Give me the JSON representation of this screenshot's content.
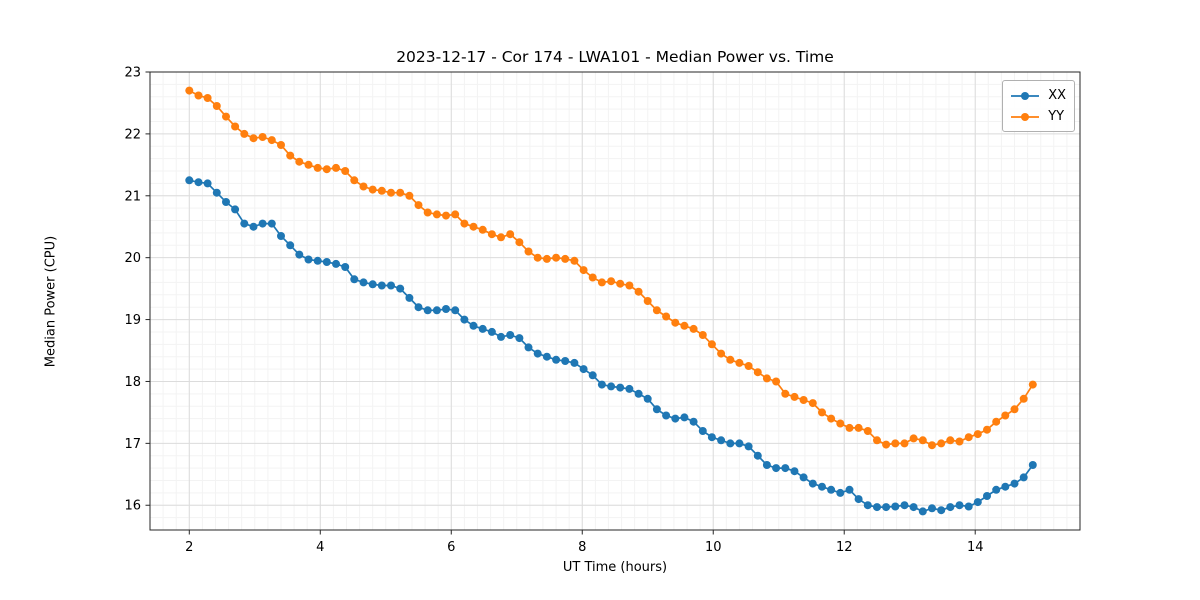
{
  "figure": {
    "background": "#ffffff"
  },
  "chart_data": {
    "type": "line",
    "title": "2023-12-17 - Cor 174 - LWA101 - Median Power vs. Time",
    "xlabel": "UT Time (hours)",
    "ylabel": "Median Power (CPU)",
    "xlim": [
      1.4,
      15.6
    ],
    "ylim": [
      15.6,
      23
    ],
    "xticks": [
      2,
      4,
      6,
      8,
      10,
      12,
      14
    ],
    "yticks": [
      16,
      17,
      18,
      19,
      20,
      21,
      22,
      23
    ],
    "grid": true,
    "legend_position": "upper right",
    "marker": "circle",
    "x": [
      2.0,
      2.14,
      2.28,
      2.42,
      2.56,
      2.7,
      2.84,
      2.98,
      3.12,
      3.26,
      3.4,
      3.54,
      3.68,
      3.82,
      3.96,
      4.1,
      4.24,
      4.38,
      4.52,
      4.66,
      4.8,
      4.94,
      5.08,
      5.22,
      5.36,
      5.5,
      5.64,
      5.78,
      5.92,
      6.06,
      6.2,
      6.34,
      6.48,
      6.62,
      6.76,
      6.9,
      7.04,
      7.18,
      7.32,
      7.46,
      7.6,
      7.74,
      7.88,
      8.02,
      8.16,
      8.3,
      8.44,
      8.58,
      8.72,
      8.86,
      9.0,
      9.14,
      9.28,
      9.42,
      9.56,
      9.7,
      9.84,
      9.98,
      10.12,
      10.26,
      10.4,
      10.54,
      10.68,
      10.82,
      10.96,
      11.1,
      11.24,
      11.38,
      11.52,
      11.66,
      11.8,
      11.94,
      12.08,
      12.22,
      12.36,
      12.5,
      12.64,
      12.78,
      12.92,
      13.06,
      13.2,
      13.34,
      13.48,
      13.62,
      13.76,
      13.9,
      14.04,
      14.18,
      14.32,
      14.46,
      14.6,
      14.74,
      14.88
    ],
    "series": [
      {
        "name": "XX",
        "color": "#1f77b4",
        "values": [
          21.25,
          21.22,
          21.2,
          21.05,
          20.9,
          20.78,
          20.55,
          20.5,
          20.55,
          20.55,
          20.35,
          20.2,
          20.05,
          19.97,
          19.95,
          19.93,
          19.9,
          19.85,
          19.65,
          19.6,
          19.57,
          19.55,
          19.55,
          19.5,
          19.35,
          19.2,
          19.15,
          19.15,
          19.17,
          19.15,
          19.0,
          18.9,
          18.85,
          18.8,
          18.72,
          18.75,
          18.7,
          18.55,
          18.45,
          18.4,
          18.35,
          18.33,
          18.3,
          18.2,
          18.1,
          17.95,
          17.92,
          17.9,
          17.88,
          17.8,
          17.72,
          17.55,
          17.45,
          17.4,
          17.42,
          17.35,
          17.2,
          17.1,
          17.05,
          17.0,
          17.0,
          16.95,
          16.8,
          16.65,
          16.6,
          16.6,
          16.55,
          16.45,
          16.35,
          16.3,
          16.25,
          16.2,
          16.25,
          16.1,
          16.0,
          15.97,
          15.97,
          15.98,
          16.0,
          15.97,
          15.9,
          15.95,
          15.92,
          15.97,
          16.0,
          15.98,
          16.05,
          16.15,
          16.25,
          16.3,
          16.35,
          16.45,
          16.65
        ]
      },
      {
        "name": "YY",
        "color": "#ff7f0e",
        "values": [
          22.7,
          22.62,
          22.58,
          22.45,
          22.28,
          22.12,
          22.0,
          21.93,
          21.95,
          21.9,
          21.82,
          21.65,
          21.55,
          21.5,
          21.45,
          21.43,
          21.45,
          21.4,
          21.25,
          21.15,
          21.1,
          21.08,
          21.05,
          21.05,
          21.0,
          20.85,
          20.73,
          20.7,
          20.68,
          20.7,
          20.55,
          20.5,
          20.45,
          20.38,
          20.33,
          20.38,
          20.25,
          20.1,
          20.0,
          19.98,
          20.0,
          19.98,
          19.95,
          19.8,
          19.68,
          19.6,
          19.62,
          19.58,
          19.55,
          19.45,
          19.3,
          19.15,
          19.05,
          18.95,
          18.9,
          18.85,
          18.75,
          18.6,
          18.45,
          18.35,
          18.3,
          18.25,
          18.15,
          18.05,
          18.0,
          17.8,
          17.75,
          17.7,
          17.65,
          17.5,
          17.4,
          17.32,
          17.25,
          17.25,
          17.2,
          17.05,
          16.98,
          17.0,
          17.0,
          17.08,
          17.05,
          16.97,
          17.0,
          17.05,
          17.03,
          17.1,
          17.15,
          17.22,
          17.35,
          17.45,
          17.55,
          17.72,
          17.95
        ]
      }
    ]
  }
}
